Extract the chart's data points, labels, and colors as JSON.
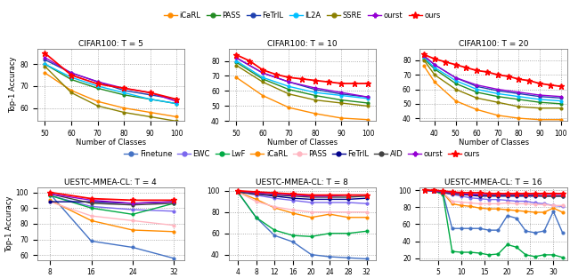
{
  "top_legend_labels": [
    "iCaRL",
    "PASS",
    "FeTrIL",
    "IL2A",
    "SSRE",
    "ourst",
    "ours"
  ],
  "bottom_legend_labels": [
    "Finetune",
    "EWC",
    "LwF",
    "iCaRL",
    "PASS",
    "FeTrIL",
    "AID",
    "ourst",
    "ours"
  ],
  "top_colors": {
    "iCaRL": "#FF8C00",
    "PASS": "#228B22",
    "FeTrIL": "#1E40AF",
    "IL2A": "#00BFFF",
    "SSRE": "#8B8000",
    "ourst": "#9400D3",
    "ours": "#FF0000"
  },
  "bottom_colors": {
    "Finetune": "#4472C4",
    "EWC": "#7B68EE",
    "LwF": "#00AA44",
    "iCaRL": "#FF8C00",
    "PASS": "#FFB6C1",
    "FeTrIL": "#00008B",
    "AID": "#404040",
    "ourst": "#9400D3",
    "ours": "#FF0000"
  },
  "cifar_t5": {
    "title": "CIFAR100: T = 5",
    "xlabel": "Number of Classes",
    "ylabel": "Top-1 Accuracy",
    "xlim": [
      47,
      103
    ],
    "ylim": [
      54,
      87
    ],
    "xticks": [
      50,
      60,
      70,
      80,
      90,
      100
    ],
    "series": {
      "iCaRL": {
        "x": [
          50,
          60,
          70,
          80,
          90,
          100
        ],
        "y": [
          76,
          68,
          63,
          60,
          58,
          56
        ]
      },
      "PASS": {
        "x": [
          50,
          60,
          70,
          80,
          90,
          100
        ],
        "y": [
          80,
          73,
          69,
          66,
          64,
          62
        ]
      },
      "FeTrIL": {
        "x": [
          50,
          60,
          70,
          80,
          90,
          100
        ],
        "y": [
          82,
          76,
          72,
          68,
          66,
          64
        ]
      },
      "IL2A": {
        "x": [
          50,
          60,
          70,
          80,
          90,
          100
        ],
        "y": [
          80,
          74,
          70,
          67,
          64,
          62
        ]
      },
      "SSRE": {
        "x": [
          50,
          60,
          70,
          80,
          90,
          100
        ],
        "y": [
          79,
          67,
          61,
          58,
          56,
          54
        ]
      },
      "ourst": {
        "x": [
          50,
          60,
          70,
          80,
          90,
          100
        ],
        "y": [
          83,
          76,
          72,
          69,
          67,
          63
        ]
      },
      "ours": {
        "x": [
          50,
          60,
          70,
          80,
          90,
          100
        ],
        "y": [
          85,
          75,
          71,
          69,
          67,
          64
        ]
      }
    }
  },
  "cifar_t10": {
    "title": "CIFAR100: T = 10",
    "xlabel": "Number of Classes",
    "ylabel": "Top-1 Accuracy",
    "xlim": [
      47,
      103
    ],
    "ylim": [
      40,
      88
    ],
    "xticks": [
      50,
      60,
      70,
      80,
      90,
      100
    ],
    "series": {
      "iCaRL": {
        "x": [
          50,
          60,
          70,
          80,
          90,
          100
        ],
        "y": [
          69,
          57,
          49,
          45,
          42,
          41
        ]
      },
      "PASS": {
        "x": [
          50,
          60,
          70,
          80,
          90,
          100
        ],
        "y": [
          79,
          68,
          61,
          57,
          54,
          52
        ]
      },
      "FeTrIL": {
        "x": [
          50,
          60,
          70,
          80,
          90,
          100
        ],
        "y": [
          82,
          72,
          66,
          61,
          58,
          56
        ]
      },
      "IL2A": {
        "x": [
          50,
          60,
          70,
          80,
          90,
          100
        ],
        "y": [
          80,
          69,
          63,
          59,
          57,
          55
        ]
      },
      "SSRE": {
        "x": [
          50,
          60,
          70,
          80,
          90,
          100
        ],
        "y": [
          77,
          66,
          58,
          54,
          52,
          50
        ]
      },
      "ourst": {
        "x": [
          50,
          60,
          70,
          80,
          90,
          100
        ],
        "y": [
          82,
          72,
          66,
          62,
          59,
          56
        ]
      },
      "ours": {
        "x": [
          50,
          55,
          60,
          65,
          70,
          75,
          80,
          85,
          90,
          95,
          100
        ],
        "y": [
          84,
          80,
          74,
          71,
          69,
          68,
          67,
          66,
          65,
          65,
          65
        ]
      }
    }
  },
  "cifar_t20": {
    "title": "CIFAR100: T = 20",
    "xlabel": "Number of Classes",
    "ylabel": "Top-1 Accuracy",
    "xlim": [
      33,
      103
    ],
    "ylim": [
      38,
      88
    ],
    "xticks": [
      40,
      50,
      60,
      70,
      80,
      90,
      100
    ],
    "series": {
      "iCaRL": {
        "x": [
          35,
          40,
          50,
          60,
          70,
          80,
          90,
          100
        ],
        "y": [
          76,
          65,
          52,
          46,
          42,
          40,
          39,
          39
        ]
      },
      "PASS": {
        "x": [
          35,
          40,
          50,
          60,
          70,
          80,
          90,
          100
        ],
        "y": [
          81,
          74,
          64,
          58,
          55,
          53,
          51,
          50
        ]
      },
      "FeTrIL": {
        "x": [
          35,
          40,
          50,
          60,
          70,
          80,
          90,
          100
        ],
        "y": [
          83,
          77,
          68,
          62,
          59,
          57,
          55,
          54
        ]
      },
      "IL2A": {
        "x": [
          35,
          40,
          50,
          60,
          70,
          80,
          90,
          100
        ],
        "y": [
          82,
          75,
          66,
          60,
          57,
          55,
          53,
          52
        ]
      },
      "SSRE": {
        "x": [
          35,
          40,
          50,
          60,
          70,
          80,
          90,
          100
        ],
        "y": [
          80,
          70,
          60,
          54,
          51,
          48,
          47,
          47
        ]
      },
      "ourst": {
        "x": [
          35,
          40,
          50,
          60,
          70,
          80,
          90,
          100
        ],
        "y": [
          83,
          77,
          68,
          63,
          60,
          58,
          56,
          55
        ]
      },
      "ours": {
        "x": [
          35,
          40,
          45,
          50,
          55,
          60,
          65,
          70,
          75,
          80,
          85,
          90,
          95,
          100
        ],
        "y": [
          84,
          81,
          79,
          77,
          75,
          73,
          72,
          70,
          69,
          67,
          66,
          64,
          63,
          62
        ]
      }
    }
  },
  "uestc_t4": {
    "title": "UESTC-MMEA-CL: T = 4",
    "xlabel": "Number of Classes",
    "ylabel": "Top-1 Accuracy",
    "xlim": [
      5.5,
      34
    ],
    "ylim": [
      57,
      103
    ],
    "xticks": [
      8,
      16,
      24,
      32
    ],
    "series": {
      "Finetune": {
        "x": [
          8,
          16,
          24,
          32
        ],
        "y": [
          99,
          69,
          65,
          58
        ]
      },
      "EWC": {
        "x": [
          8,
          16,
          24,
          32
        ],
        "y": [
          98,
          91,
          89,
          88
        ]
      },
      "LwF": {
        "x": [
          8,
          16,
          24,
          32
        ],
        "y": [
          98,
          90,
          86,
          93
        ]
      },
      "iCaRL": {
        "x": [
          8,
          16,
          24,
          32
        ],
        "y": [
          95,
          82,
          76,
          75
        ]
      },
      "PASS": {
        "x": [
          8,
          16,
          24,
          32
        ],
        "y": [
          94,
          85,
          82,
          79
        ]
      },
      "FeTrIL": {
        "x": [
          8,
          16,
          24,
          32
        ],
        "y": [
          94,
          94,
          93,
          94
        ]
      },
      "AID": {
        "x": [
          8,
          16,
          24,
          32
        ],
        "y": [
          99,
          93,
          92,
          93
        ]
      },
      "ourst": {
        "x": [
          8,
          16,
          24,
          32
        ],
        "y": [
          99,
          95,
          93,
          94
        ]
      },
      "ours": {
        "x": [
          8,
          16,
          24,
          32
        ],
        "y": [
          100,
          96,
          95,
          95
        ]
      }
    }
  },
  "uestc_t8": {
    "title": "UESTC-MMEA-CL: T = 8",
    "xlabel": "Number of Classes",
    "ylabel": "Top-1 Accuracy",
    "xlim": [
      2,
      34
    ],
    "ylim": [
      35,
      103
    ],
    "xticks": [
      4,
      8,
      12,
      16,
      20,
      24,
      28,
      32
    ],
    "series": {
      "Finetune": {
        "x": [
          4,
          8,
          12,
          16,
          20,
          24,
          28,
          32
        ],
        "y": [
          99,
          75,
          58,
          52,
          40,
          38,
          37,
          36
        ]
      },
      "EWC": {
        "x": [
          4,
          8,
          12,
          16,
          20,
          24,
          28,
          32
        ],
        "y": [
          99,
          96,
          93,
          91,
          89,
          89,
          89,
          88
        ]
      },
      "LwF": {
        "x": [
          4,
          8,
          12,
          16,
          20,
          24,
          28,
          32
        ],
        "y": [
          99,
          75,
          63,
          58,
          57,
          60,
          60,
          62
        ]
      },
      "iCaRL": {
        "x": [
          4,
          8,
          12,
          16,
          20,
          24,
          28,
          32
        ],
        "y": [
          99,
          92,
          84,
          79,
          75,
          78,
          75,
          75
        ]
      },
      "PASS": {
        "x": [
          4,
          8,
          12,
          16,
          20,
          24,
          28,
          32
        ],
        "y": [
          99,
          90,
          85,
          82,
          80,
          80,
          80,
          80
        ]
      },
      "FeTrIL": {
        "x": [
          4,
          8,
          12,
          16,
          20,
          24,
          28,
          32
        ],
        "y": [
          99,
          97,
          95,
          93,
          92,
          92,
          92,
          93
        ]
      },
      "AID": {
        "x": [
          4,
          8,
          12,
          16,
          20,
          24,
          28,
          32
        ],
        "y": [
          99,
          97,
          96,
          95,
          94,
          94,
          94,
          95
        ]
      },
      "ourst": {
        "x": [
          4,
          8,
          12,
          16,
          20,
          24,
          28,
          32
        ],
        "y": [
          100,
          98,
          97,
          96,
          95,
          95,
          96,
          96
        ]
      },
      "ours": {
        "x": [
          4,
          8,
          12,
          16,
          20,
          24,
          28,
          32
        ],
        "y": [
          100,
          99,
          98,
          97,
          96,
          96,
          96,
          96
        ]
      }
    }
  },
  "uestc_t16": {
    "title": "UESTC-MMEA-CL: T = 16",
    "xlabel": "Number of Classes",
    "ylabel": "Top-1 Accuracy",
    "xlim": [
      1,
      33
    ],
    "ylim": [
      18,
      103
    ],
    "xticks": [
      5,
      10,
      15,
      20,
      25,
      30
    ],
    "series": {
      "Finetune": {
        "x": [
          2,
          4,
          6,
          8,
          10,
          12,
          14,
          16,
          18,
          20,
          22,
          24,
          26,
          28,
          30,
          32
        ],
        "y": [
          100,
          99,
          97,
          55,
          55,
          55,
          55,
          53,
          53,
          70,
          67,
          52,
          50,
          52,
          75,
          50
        ]
      },
      "EWC": {
        "x": [
          2,
          4,
          6,
          8,
          10,
          12,
          14,
          16,
          18,
          20,
          22,
          24,
          26,
          28,
          30,
          32
        ],
        "y": [
          100,
          99,
          97,
          95,
          93,
          91,
          90,
          89,
          89,
          88,
          87,
          87,
          85,
          84,
          82,
          81
        ]
      },
      "LwF": {
        "x": [
          2,
          4,
          6,
          8,
          10,
          12,
          14,
          16,
          18,
          20,
          22,
          24,
          26,
          28,
          30,
          32
        ],
        "y": [
          100,
          99,
          95,
          28,
          27,
          27,
          26,
          24,
          25,
          36,
          33,
          24,
          22,
          24,
          24,
          21
        ]
      },
      "iCaRL": {
        "x": [
          2,
          4,
          6,
          8,
          10,
          12,
          14,
          16,
          18,
          20,
          22,
          24,
          26,
          28,
          30,
          32
        ],
        "y": [
          100,
          99,
          97,
          84,
          82,
          81,
          79,
          78,
          78,
          77,
          76,
          75,
          74,
          74,
          79,
          74
        ]
      },
      "PASS": {
        "x": [
          2,
          4,
          6,
          8,
          10,
          12,
          14,
          16,
          18,
          20,
          22,
          24,
          26,
          28,
          30,
          32
        ],
        "y": [
          100,
          99,
          97,
          87,
          86,
          85,
          84,
          84,
          84,
          85,
          84,
          84,
          83,
          83,
          82,
          82
        ]
      },
      "FeTrIL": {
        "x": [
          2,
          4,
          6,
          8,
          10,
          12,
          14,
          16,
          18,
          20,
          22,
          24,
          26,
          28,
          30,
          32
        ],
        "y": [
          100,
          99,
          97,
          96,
          95,
          94,
          93,
          93,
          93,
          93,
          93,
          93,
          93,
          93,
          93,
          93
        ]
      },
      "AID": {
        "x": [
          2,
          4,
          6,
          8,
          10,
          12,
          14,
          16,
          18,
          20,
          22,
          24,
          26,
          28,
          30,
          32
        ],
        "y": [
          100,
          99,
          97,
          96,
          95,
          95,
          94,
          94,
          94,
          94,
          94,
          94,
          94,
          93,
          93,
          93
        ]
      },
      "ourst": {
        "x": [
          2,
          4,
          6,
          8,
          10,
          12,
          14,
          16,
          18,
          20,
          22,
          24,
          26,
          28,
          30,
          32
        ],
        "y": [
          100,
          99,
          98,
          97,
          96,
          95,
          95,
          95,
          95,
          95,
          95,
          95,
          95,
          95,
          95,
          95
        ]
      },
      "ours": {
        "x": [
          2,
          4,
          6,
          8,
          10,
          12,
          14,
          16,
          18,
          20,
          22,
          24,
          26,
          28,
          30,
          32
        ],
        "y": [
          100,
          100,
          99,
          98,
          97,
          97,
          97,
          96,
          96,
          96,
          96,
          96,
          96,
          96,
          96,
          96
        ]
      }
    }
  }
}
